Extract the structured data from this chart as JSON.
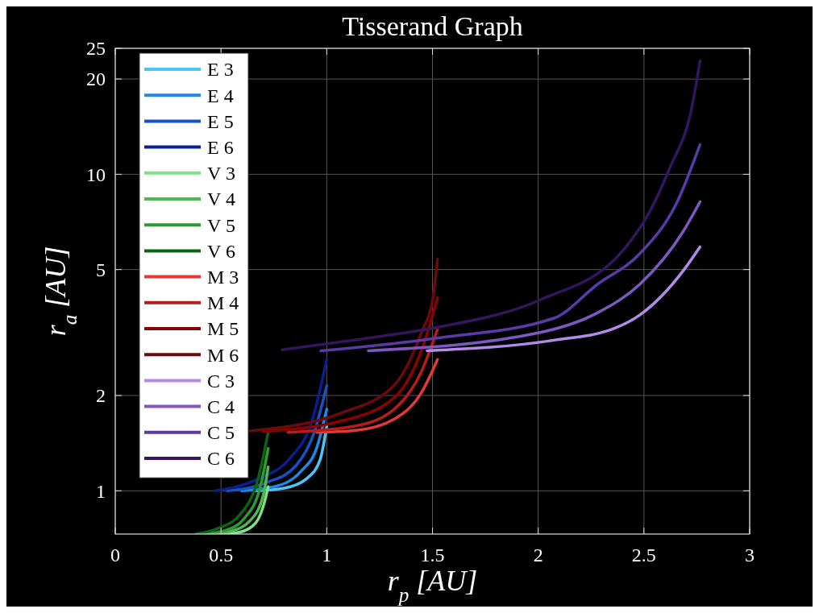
{
  "chart_data": {
    "type": "line",
    "title": "Tisserand Graph",
    "xlabel": "r$_{p}$ [AU]",
    "ylabel": "r$_{a}$ [AU]",
    "xlim": [
      0,
      3
    ],
    "xticks": [
      0,
      0.5,
      1,
      1.5,
      2,
      2.5,
      3
    ],
    "ylim": [
      0.73,
      25
    ],
    "yticks": [
      1,
      2,
      5,
      10,
      20,
      25
    ],
    "log": "y",
    "grid": true,
    "legend": "top left",
    "series": [
      {
        "name": "E 3",
        "color": "#4fc3f7",
        "x": [
          0.663,
          0.8,
          0.903,
          0.968,
          1.0
        ],
        "values": [
          1.0,
          1.02,
          1.09,
          1.25,
          1.6
        ]
      },
      {
        "name": "E 4",
        "color": "#1e88e5",
        "x": [
          0.598,
          0.751,
          0.877,
          0.953,
          1.0
        ],
        "values": [
          1.0,
          1.03,
          1.15,
          1.37,
          1.81
        ]
      },
      {
        "name": "E 5",
        "color": "#1353c4",
        "x": [
          0.53,
          0.713,
          0.854,
          0.942,
          1.0
        ],
        "values": [
          1.0,
          1.06,
          1.2,
          1.54,
          2.15
        ]
      },
      {
        "name": "E 6",
        "color": "#0a1f8f",
        "x": [
          0.473,
          0.675,
          0.827,
          0.93,
          1.0
        ],
        "values": [
          1.0,
          1.09,
          1.27,
          1.66,
          2.6
        ]
      },
      {
        "name": "V 3",
        "color": "#7fe08a",
        "x": [
          0.484,
          0.587,
          0.663,
          0.705,
          0.723
        ],
        "values": [
          0.73,
          0.74,
          0.79,
          0.918,
          1.03
        ]
      },
      {
        "name": "V 4",
        "color": "#4cb84f",
        "x": [
          0.454,
          0.549,
          0.637,
          0.7,
          0.723
        ],
        "values": [
          0.73,
          0.746,
          0.804,
          0.97,
          1.19
        ]
      },
      {
        "name": "V 5",
        "color": "#2e9a32",
        "x": [
          0.42,
          0.522,
          0.61,
          0.686,
          0.723
        ],
        "values": [
          0.73,
          0.75,
          0.818,
          1.03,
          1.36
        ]
      },
      {
        "name": "V 6",
        "color": "#0b6414",
        "x": [
          0.381,
          0.484,
          0.587,
          0.675,
          0.723
        ],
        "values": [
          0.73,
          0.76,
          0.837,
          1.09,
          1.53
        ]
      },
      {
        "name": "M 3",
        "color": "#e53935",
        "x": [
          0.953,
          1.132,
          1.323,
          1.449,
          1.524
        ],
        "values": [
          1.53,
          1.55,
          1.69,
          2.05,
          2.6
        ]
      },
      {
        "name": "M 4",
        "color": "#b71c1c",
        "x": [
          0.816,
          1.132,
          1.323,
          1.449,
          1.524
        ],
        "values": [
          1.53,
          1.6,
          1.82,
          2.39,
          3.24
        ]
      },
      {
        "name": "M 5",
        "color": "#8b0000",
        "x": [
          0.7,
          1.067,
          1.323,
          1.449,
          1.524
        ],
        "values": [
          1.54,
          1.66,
          1.98,
          2.79,
          4.07
        ]
      },
      {
        "name": "M 6",
        "color": "#6b0a0a",
        "x": [
          0.637,
          1.067,
          1.323,
          1.449,
          1.502,
          1.524
        ],
        "values": [
          1.546,
          1.76,
          2.17,
          3.18,
          4.07,
          5.39
        ]
      },
      {
        "name": "C 3",
        "color": "#b38ae8",
        "x": [
          1.475,
          2.074,
          2.35,
          2.48,
          2.687,
          2.765
        ],
        "values": [
          2.77,
          2.99,
          3.24,
          3.59,
          4.97,
          5.9
        ]
      },
      {
        "name": "C 4",
        "color": "#7e57c2",
        "x": [
          1.197,
          2.005,
          2.28,
          2.48,
          2.687,
          2.765
        ],
        "values": [
          2.77,
          3.16,
          3.65,
          4.49,
          6.62,
          8.18
        ]
      },
      {
        "name": "C 5",
        "color": "#5a3aa8",
        "x": [
          0.972,
          1.529,
          2.074,
          2.28,
          2.48,
          2.661,
          2.765
        ],
        "values": [
          2.77,
          3.04,
          3.51,
          4.49,
          5.61,
          8.28,
          12.4
        ]
      },
      {
        "name": "C 6",
        "color": "#35155e",
        "x": [
          0.789,
          1.2,
          1.529,
          2.005,
          2.4,
          2.52,
          2.619,
          2.729,
          2.765
        ],
        "values": [
          2.79,
          3.04,
          3.29,
          4.0,
          5.74,
          7.47,
          10.35,
          16.6,
          22.8
        ]
      }
    ]
  }
}
